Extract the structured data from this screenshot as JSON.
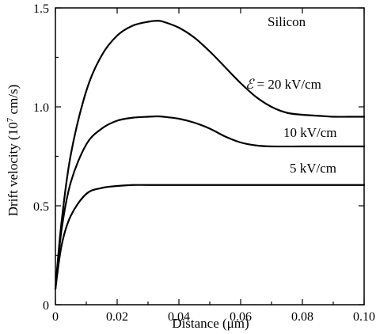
{
  "chart_data": {
    "type": "line",
    "xlabel": "Distance (μm)",
    "ylabel": "Drift velocity (10",
    "ylabel_sup": "7",
    "ylabel_tail": " cm/s)",
    "xlim": [
      0,
      0.1
    ],
    "ylim": [
      0,
      1.5
    ],
    "x_ticks": [
      0,
      0.02,
      0.04,
      0.06,
      0.08,
      0.1
    ],
    "x_tick_labels": [
      "0",
      "0.02",
      "0.04",
      "0.06",
      "0.08",
      "0.10"
    ],
    "y_ticks": [
      0,
      0.5,
      1.0,
      1.5
    ],
    "y_tick_labels": [
      "0",
      "0.5",
      "1.0",
      "1.5"
    ],
    "grid": false,
    "annotations": {
      "material": "Silicon",
      "field_symbol": "ℰ",
      "field_eq": " = 20 kV/cm",
      "label_10": "10 kV/cm",
      "label_5": "5 kV/cm"
    },
    "series": [
      {
        "name": "20 kV/cm",
        "x": [
          0,
          0.002,
          0.005,
          0.01,
          0.015,
          0.02,
          0.025,
          0.03,
          0.033,
          0.035,
          0.04,
          0.045,
          0.05,
          0.055,
          0.06,
          0.065,
          0.07,
          0.075,
          0.08,
          0.085,
          0.09,
          0.095,
          0.1
        ],
        "y": [
          0.08,
          0.42,
          0.76,
          1.08,
          1.26,
          1.36,
          1.41,
          1.43,
          1.435,
          1.43,
          1.4,
          1.35,
          1.28,
          1.2,
          1.12,
          1.05,
          1.0,
          0.97,
          0.96,
          0.955,
          0.95,
          0.95,
          0.95
        ]
      },
      {
        "name": "10 kV/cm",
        "x": [
          0,
          0.002,
          0.005,
          0.01,
          0.015,
          0.02,
          0.025,
          0.03,
          0.033,
          0.035,
          0.04,
          0.045,
          0.05,
          0.055,
          0.06,
          0.065,
          0.07,
          0.08,
          0.09,
          0.1
        ],
        "y": [
          0.08,
          0.38,
          0.62,
          0.81,
          0.89,
          0.93,
          0.945,
          0.95,
          0.952,
          0.95,
          0.94,
          0.92,
          0.89,
          0.85,
          0.82,
          0.805,
          0.8,
          0.8,
          0.8,
          0.8
        ]
      },
      {
        "name": "5 kV/cm",
        "x": [
          0,
          0.002,
          0.005,
          0.01,
          0.015,
          0.02,
          0.025,
          0.03,
          0.04,
          0.05,
          0.06,
          0.07,
          0.08,
          0.09,
          0.1
        ],
        "y": [
          0.08,
          0.3,
          0.45,
          0.56,
          0.59,
          0.6,
          0.605,
          0.605,
          0.605,
          0.605,
          0.605,
          0.605,
          0.605,
          0.605,
          0.605
        ]
      }
    ]
  }
}
